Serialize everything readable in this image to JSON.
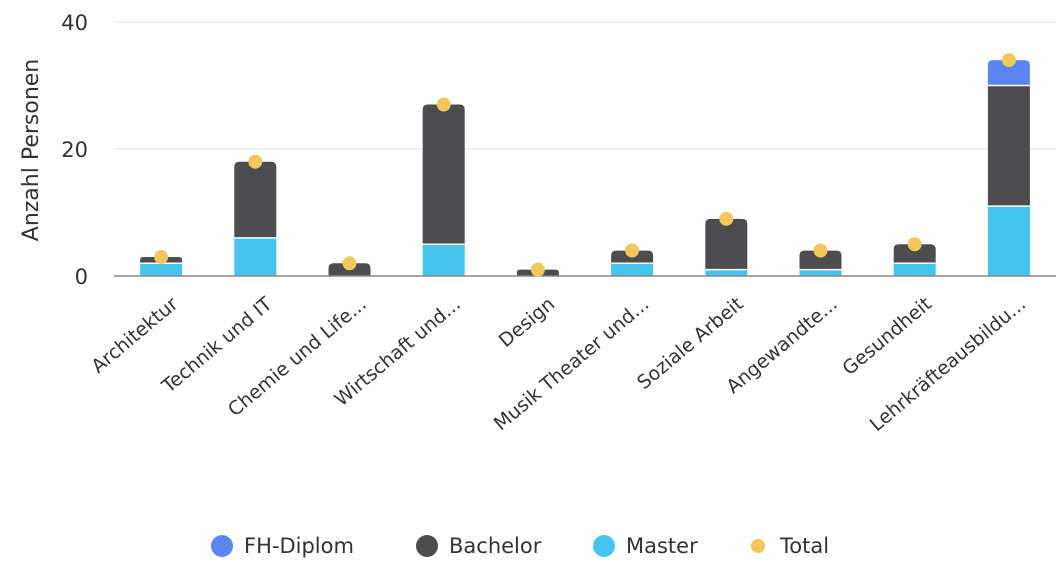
{
  "chart_data": {
    "type": "bar",
    "stacked": true,
    "ylabel": "Anzahl Personen",
    "xlabel": "",
    "ylim": [
      0,
      40
    ],
    "yticks": [
      0,
      20,
      40
    ],
    "grid": true,
    "legend_position": "bottom",
    "categories": [
      "Architektur",
      "Technik und IT",
      "Chemie und Life...",
      "Wirtschaft und...",
      "Design",
      "Musik Theater und...",
      "Soziale Arbeit",
      "Angewandte...",
      "Gesundheit",
      "Lehrkräfteausbildu..."
    ],
    "series": [
      {
        "name": "Master",
        "color": "#45c4ee",
        "values": [
          2,
          6,
          0,
          5,
          0,
          2,
          1,
          1,
          2,
          11
        ]
      },
      {
        "name": "Bachelor",
        "color": "#4d4d4f",
        "values": [
          1,
          12,
          2,
          22,
          1,
          2,
          8,
          3,
          3,
          19
        ]
      },
      {
        "name": "FH-Diplom",
        "color": "#5b86f2",
        "values": [
          0,
          0,
          0,
          0,
          0,
          0,
          0,
          0,
          0,
          4
        ]
      }
    ],
    "total": {
      "name": "Total",
      "color": "#f2c75c",
      "values": [
        3,
        18,
        2,
        27,
        1,
        4,
        9,
        4,
        5,
        34
      ]
    },
    "legend_order": [
      "FH-Diplom",
      "Bachelor",
      "Master",
      "Total"
    ]
  }
}
